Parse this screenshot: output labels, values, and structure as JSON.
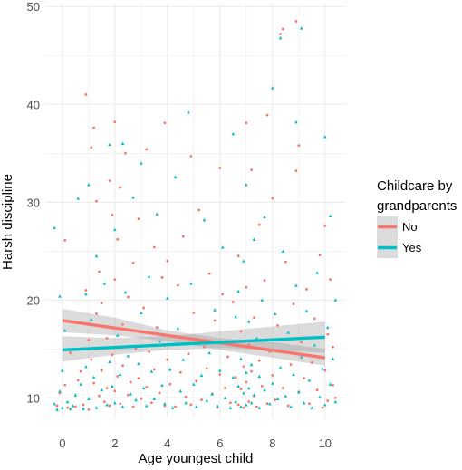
{
  "chart_data": {
    "type": "scatter",
    "xlabel": "Age youngest child",
    "ylabel": "Harsh discipline",
    "xlim": [
      -0.65,
      10.8
    ],
    "ylim": [
      7.9,
      50.3
    ],
    "xticks": [
      0,
      2,
      4,
      6,
      8,
      10
    ],
    "yticks": [
      10,
      20,
      30,
      40,
      50
    ],
    "grid": true,
    "legend": {
      "title_lines": [
        "Childcare by",
        "grandparents"
      ],
      "placement": "right"
    },
    "colors": {
      "No": "#F8766D",
      "Yes": "#00BFC4",
      "band": "#999999",
      "grid": "#EBEBEB"
    },
    "series": [
      {
        "name": "No",
        "trend": {
          "x": [
            0,
            10
          ],
          "y": [
            17.9,
            14.1
          ]
        },
        "band": {
          "x": [
            0,
            2,
            4,
            6,
            8,
            10
          ],
          "lower": [
            16.7,
            16.4,
            15.8,
            14.9,
            14.1,
            13.3
          ],
          "upper": [
            19.1,
            18.2,
            16.9,
            16.1,
            15.7,
            15.0
          ]
        },
        "points": [
          [
            -0.2,
            9.2
          ],
          [
            -0.1,
            10.5
          ],
          [
            0.1,
            11.3
          ],
          [
            0.1,
            26.1
          ],
          [
            0.2,
            9.0
          ],
          [
            0.3,
            14.6
          ],
          [
            0.5,
            9.1
          ],
          [
            0.6,
            11.8
          ],
          [
            0.7,
            12.7
          ],
          [
            0.8,
            9.3
          ],
          [
            0.9,
            41.0
          ],
          [
            0.9,
            21.0
          ],
          [
            1.0,
            15.9
          ],
          [
            1.0,
            8.8
          ],
          [
            1.1,
            35.6
          ],
          [
            1.1,
            13.9
          ],
          [
            1.2,
            37.6
          ],
          [
            1.2,
            11.5
          ],
          [
            1.3,
            30.1
          ],
          [
            1.3,
            18.6
          ],
          [
            1.4,
            22.9
          ],
          [
            1.4,
            10.2
          ],
          [
            1.5,
            19.7
          ],
          [
            1.5,
            12.8
          ],
          [
            1.6,
            9.6
          ],
          [
            1.7,
            16.1
          ],
          [
            1.7,
            11.0
          ],
          [
            1.8,
            32.2
          ],
          [
            1.8,
            9.2
          ],
          [
            1.9,
            28.7
          ],
          [
            1.9,
            14.4
          ],
          [
            2.0,
            22.1
          ],
          [
            2.0,
            38.2
          ],
          [
            2.0,
            10.7
          ],
          [
            2.1,
            26.2
          ],
          [
            2.1,
            12.2
          ],
          [
            2.2,
            31.5
          ],
          [
            2.2,
            9.4
          ],
          [
            2.3,
            17.5
          ],
          [
            2.3,
            13.3
          ],
          [
            2.4,
            35.0
          ],
          [
            2.5,
            20.3
          ],
          [
            2.5,
            10.3
          ],
          [
            2.6,
            11.6
          ],
          [
            2.7,
            23.8
          ],
          [
            2.7,
            9.1
          ],
          [
            2.8,
            15.0
          ],
          [
            2.9,
            28.3
          ],
          [
            2.9,
            12.0
          ],
          [
            3.0,
            9.9
          ],
          [
            3.1,
            19.2
          ],
          [
            3.2,
            35.4
          ],
          [
            3.2,
            11.1
          ],
          [
            3.3,
            14.7
          ],
          [
            3.4,
            9.5
          ],
          [
            3.5,
            25.4
          ],
          [
            3.5,
            12.9
          ],
          [
            3.6,
            17.2
          ],
          [
            3.7,
            10.5
          ],
          [
            3.8,
            22.3
          ],
          [
            3.9,
            38.1
          ],
          [
            3.9,
            9.2
          ],
          [
            4.0,
            13.9
          ],
          [
            4.0,
            24.0
          ],
          [
            4.1,
            11.4
          ],
          [
            4.2,
            16.3
          ],
          [
            4.3,
            9.1
          ],
          [
            4.4,
            21.5
          ],
          [
            4.5,
            12.6
          ],
          [
            4.6,
            26.5
          ],
          [
            4.7,
            10.1
          ],
          [
            4.8,
            14.5
          ],
          [
            4.9,
            34.7
          ],
          [
            4.9,
            9.3
          ],
          [
            5.0,
            18.7
          ],
          [
            5.1,
            11.7
          ],
          [
            5.2,
            29.2
          ],
          [
            5.3,
            9.8
          ],
          [
            5.4,
            15.2
          ],
          [
            5.5,
            13.0
          ],
          [
            5.6,
            22.7
          ],
          [
            5.7,
            10.4
          ],
          [
            5.8,
            17.9
          ],
          [
            5.9,
            9.0
          ],
          [
            6.0,
            12.4
          ],
          [
            6.0,
            33.5
          ],
          [
            6.1,
            20.6
          ],
          [
            6.2,
            11.0
          ],
          [
            6.3,
            14.2
          ],
          [
            6.4,
            9.5
          ],
          [
            6.5,
            19.8
          ],
          [
            6.6,
            12.1
          ],
          [
            6.7,
            9.3
          ],
          [
            6.7,
            24.5
          ],
          [
            6.8,
            10.9
          ],
          [
            6.8,
            16.8
          ],
          [
            6.9,
            13.2
          ],
          [
            6.9,
            9.0
          ],
          [
            7.0,
            11.6
          ],
          [
            7.0,
            38.1
          ],
          [
            7.0,
            21.3
          ],
          [
            7.1,
            9.6
          ],
          [
            7.1,
            15.4
          ],
          [
            7.2,
            12.7
          ],
          [
            7.2,
            33.3
          ],
          [
            7.3,
            10.2
          ],
          [
            7.3,
            18.2
          ],
          [
            7.4,
            9.1
          ],
          [
            7.5,
            13.8
          ],
          [
            7.5,
            27.7
          ],
          [
            7.6,
            11.2
          ],
          [
            7.7,
            22.0
          ],
          [
            7.8,
            9.4
          ],
          [
            7.8,
            38.9
          ],
          [
            7.9,
            14.7
          ],
          [
            8.0,
            12.3
          ],
          [
            8.0,
            30.4
          ],
          [
            8.1,
            9.8
          ],
          [
            8.2,
            17.4
          ],
          [
            8.3,
            47.2
          ],
          [
            8.4,
            47.7
          ],
          [
            8.4,
            11.0
          ],
          [
            8.5,
            23.9
          ],
          [
            8.6,
            9.2
          ],
          [
            8.7,
            13.4
          ],
          [
            8.8,
            19.6
          ],
          [
            8.9,
            48.5
          ],
          [
            8.9,
            33.2
          ],
          [
            9.0,
            10.6
          ],
          [
            9.0,
            35.8
          ],
          [
            9.1,
            15.7
          ],
          [
            9.2,
            12.0
          ],
          [
            9.3,
            21.1
          ],
          [
            9.4,
            9.4
          ],
          [
            9.5,
            13.6
          ],
          [
            9.6,
            18.1
          ],
          [
            9.7,
            10.8
          ],
          [
            9.8,
            24.6
          ],
          [
            9.9,
            9.0
          ],
          [
            10.0,
            27.6
          ],
          [
            10.0,
            12.8
          ],
          [
            10.1,
            16.5
          ],
          [
            10.1,
            9.7
          ],
          [
            10.2,
            22.1
          ],
          [
            10.3,
            11.3
          ],
          [
            10.3,
            15.2
          ],
          [
            10.4,
            10.0
          ]
        ]
      },
      {
        "name": "Yes",
        "trend": {
          "x": [
            0,
            10
          ],
          "y": [
            14.9,
            16.2
          ]
        },
        "band": {
          "x": [
            0,
            2,
            4,
            6,
            8,
            10
          ],
          "lower": [
            13.7,
            14.4,
            14.9,
            15.1,
            14.9,
            14.6
          ],
          "upper": [
            16.3,
            16.1,
            16.3,
            16.8,
            17.3,
            17.8
          ]
        },
        "points": [
          [
            -0.3,
            27.4
          ],
          [
            -0.3,
            9.4
          ],
          [
            -0.2,
            8.8
          ],
          [
            -0.1,
            20.4
          ],
          [
            -0.1,
            10.7
          ],
          [
            0.0,
            12.8
          ],
          [
            0.0,
            9.0
          ],
          [
            0.1,
            16.9
          ],
          [
            0.2,
            9.6
          ],
          [
            0.3,
            8.9
          ],
          [
            0.4,
            9.2
          ],
          [
            0.5,
            10.3
          ],
          [
            0.6,
            30.4
          ],
          [
            0.7,
            11.4
          ],
          [
            0.8,
            8.9
          ],
          [
            0.9,
            20.6
          ],
          [
            0.9,
            13.2
          ],
          [
            1.0,
            31.8
          ],
          [
            1.0,
            9.9
          ],
          [
            1.1,
            18.0
          ],
          [
            1.2,
            12.1
          ],
          [
            1.3,
            24.5
          ],
          [
            1.3,
            9.0
          ],
          [
            1.4,
            15.1
          ],
          [
            1.5,
            10.8
          ],
          [
            1.6,
            21.7
          ],
          [
            1.7,
            9.3
          ],
          [
            1.8,
            35.9
          ],
          [
            1.8,
            13.7
          ],
          [
            1.9,
            11.2
          ],
          [
            2.0,
            27.2
          ],
          [
            2.0,
            9.5
          ],
          [
            2.1,
            16.4
          ],
          [
            2.2,
            12.4
          ],
          [
            2.3,
            36.0
          ],
          [
            2.3,
            9.1
          ],
          [
            2.4,
            20.8
          ],
          [
            2.5,
            14.3
          ],
          [
            2.6,
            10.4
          ],
          [
            2.7,
            30.5
          ],
          [
            2.8,
            9.8
          ],
          [
            2.9,
            13.5
          ],
          [
            3.0,
            34.0
          ],
          [
            3.0,
            18.7
          ],
          [
            3.1,
            11.0
          ],
          [
            3.2,
            9.2
          ],
          [
            3.3,
            22.4
          ],
          [
            3.4,
            12.7
          ],
          [
            3.5,
            9.9
          ],
          [
            3.6,
            28.8
          ],
          [
            3.7,
            15.8
          ],
          [
            3.8,
            11.3
          ],
          [
            3.9,
            9.4
          ],
          [
            4.0,
            20.2
          ],
          [
            4.1,
            12.9
          ],
          [
            4.2,
            9.0
          ],
          [
            4.3,
            32.6
          ],
          [
            4.4,
            17.1
          ],
          [
            4.5,
            10.7
          ],
          [
            4.6,
            13.9
          ],
          [
            4.7,
            9.5
          ],
          [
            4.8,
            39.2
          ],
          [
            4.9,
            21.7
          ],
          [
            5.0,
            11.4
          ],
          [
            5.1,
            9.1
          ],
          [
            5.2,
            16.0
          ],
          [
            5.3,
            12.3
          ],
          [
            5.4,
            28.2
          ],
          [
            5.5,
            9.7
          ],
          [
            5.6,
            14.6
          ],
          [
            5.7,
            10.4
          ],
          [
            5.8,
            19.0
          ],
          [
            5.9,
            9.2
          ],
          [
            6.0,
            12.8
          ],
          [
            6.1,
            25.4
          ],
          [
            6.2,
            10.0
          ],
          [
            6.3,
            15.5
          ],
          [
            6.4,
            9.0
          ],
          [
            6.5,
            37.0
          ],
          [
            6.5,
            12.1
          ],
          [
            6.6,
            18.3
          ],
          [
            6.6,
            9.6
          ],
          [
            6.7,
            11.2
          ],
          [
            6.7,
            20.9
          ],
          [
            6.8,
            9.1
          ],
          [
            6.8,
            14.0
          ],
          [
            6.9,
            10.5
          ],
          [
            6.9,
            24.0
          ],
          [
            7.0,
            9.3
          ],
          [
            7.0,
            12.6
          ],
          [
            7.0,
            31.8
          ],
          [
            7.1,
            11.0
          ],
          [
            7.1,
            17.8
          ],
          [
            7.2,
            9.5
          ],
          [
            7.2,
            13.4
          ],
          [
            7.3,
            26.2
          ],
          [
            7.3,
            10.3
          ],
          [
            7.4,
            16.1
          ],
          [
            7.5,
            9.0
          ],
          [
            7.5,
            12.2
          ],
          [
            7.6,
            20.0
          ],
          [
            7.7,
            10.8
          ],
          [
            7.7,
            28.5
          ],
          [
            7.8,
            14.9
          ],
          [
            7.9,
            9.4
          ],
          [
            8.0,
            41.7
          ],
          [
            8.0,
            11.5
          ],
          [
            8.1,
            18.6
          ],
          [
            8.2,
            9.9
          ],
          [
            8.3,
            46.8
          ],
          [
            8.3,
            13.1
          ],
          [
            8.4,
            25.0
          ],
          [
            8.5,
            10.2
          ],
          [
            8.6,
            16.7
          ],
          [
            8.7,
            9.1
          ],
          [
            8.8,
            12.4
          ],
          [
            8.9,
            38.2
          ],
          [
            8.9,
            21.5
          ],
          [
            9.0,
            10.6
          ],
          [
            9.1,
            47.8
          ],
          [
            9.1,
            14.2
          ],
          [
            9.2,
            9.5
          ],
          [
            9.3,
            18.9
          ],
          [
            9.4,
            11.8
          ],
          [
            9.5,
            9.0
          ],
          [
            9.6,
            15.4
          ],
          [
            9.7,
            22.8
          ],
          [
            9.8,
            10.1
          ],
          [
            9.9,
            13.0
          ],
          [
            10.0,
            36.7
          ],
          [
            10.0,
            9.3
          ],
          [
            10.1,
            17.2
          ],
          [
            10.2,
            28.6
          ],
          [
            10.2,
            11.4
          ],
          [
            10.3,
            14.0
          ],
          [
            10.4,
            9.6
          ],
          [
            10.4,
            20.0
          ]
        ]
      }
    ]
  }
}
